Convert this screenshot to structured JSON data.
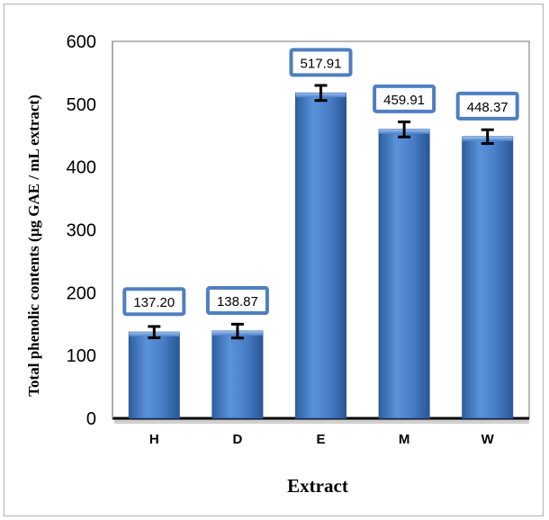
{
  "chart_data": {
    "type": "bar",
    "categories": [
      "H",
      "D",
      "E",
      "M",
      "W"
    ],
    "values": [
      137.2,
      138.87,
      517.91,
      459.91,
      448.37
    ],
    "data_labels": [
      "137.20",
      "138.87",
      "517.91",
      "459.91",
      "448.37"
    ],
    "error": [
      9,
      11,
      12,
      12,
      11
    ],
    "xlabel": "Extract",
    "ylabel": "Total phenolic contents  (µg GAE / mL extract)",
    "ylim": [
      0,
      600
    ],
    "yticks": [
      0,
      100,
      200,
      300,
      400,
      500,
      600
    ],
    "grid": false,
    "legend": "none",
    "colors": {
      "bar": "#4a7fc8",
      "bar_dark": "#2f5f9f",
      "label_border": "#4f7fc0",
      "axis": "#000000"
    }
  }
}
